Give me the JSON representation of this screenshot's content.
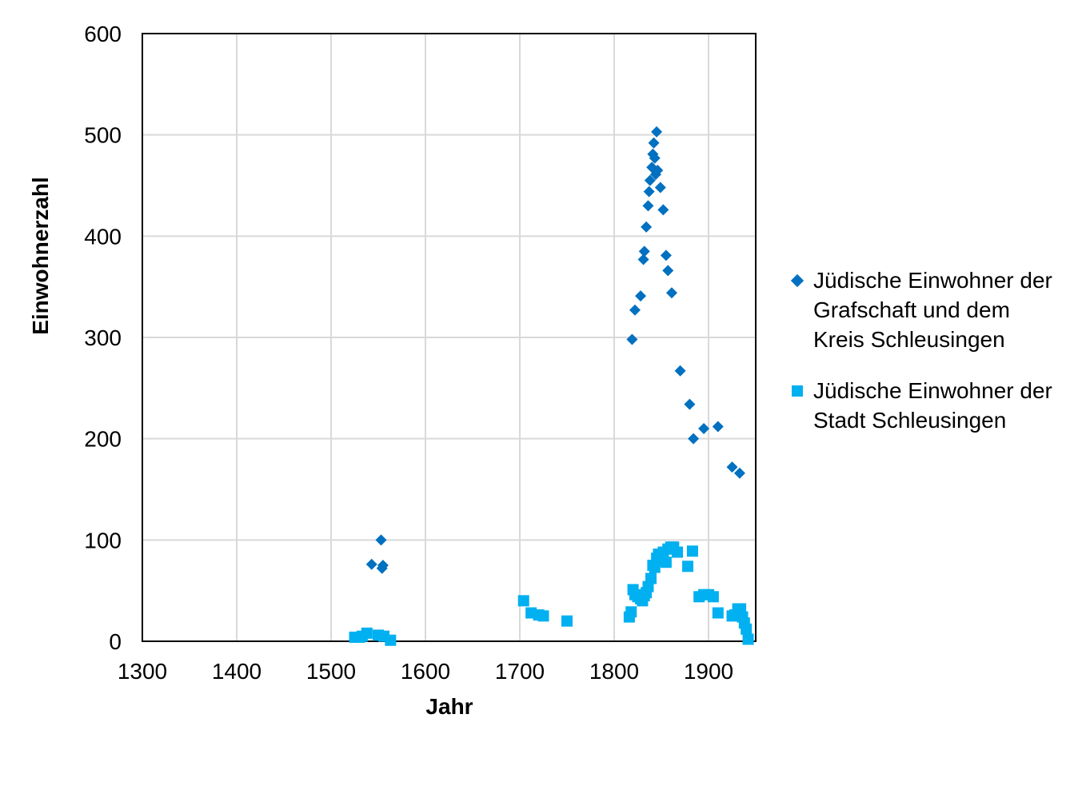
{
  "chart_data": {
    "type": "scatter",
    "xlabel": "Jahr",
    "ylabel": "Einwohnerzahl",
    "xlim": [
      1300,
      1950
    ],
    "ylim": [
      0,
      600
    ],
    "x_ticks": [
      1300,
      1400,
      1500,
      1600,
      1700,
      1800,
      1900
    ],
    "y_ticks": [
      0,
      100,
      200,
      300,
      400,
      500,
      600
    ],
    "grid": true,
    "legend_position": "right",
    "series": [
      {
        "name": "Jüdische Einwohner der Grafschaft und dem Kreis Schleusingen",
        "marker": "diamond",
        "color": "#0070C0",
        "points": [
          [
            1543,
            76
          ],
          [
            1553,
            100
          ],
          [
            1554,
            72
          ],
          [
            1555,
            75
          ],
          [
            1819,
            298
          ],
          [
            1822,
            327
          ],
          [
            1828,
            341
          ],
          [
            1831,
            377
          ],
          [
            1832,
            385
          ],
          [
            1834,
            409
          ],
          [
            1836,
            430
          ],
          [
            1837,
            444
          ],
          [
            1838,
            455
          ],
          [
            1840,
            468
          ],
          [
            1841,
            481
          ],
          [
            1842,
            492
          ],
          [
            1843,
            477
          ],
          [
            1844,
            461
          ],
          [
            1845,
            503
          ],
          [
            1846,
            465
          ],
          [
            1849,
            448
          ],
          [
            1852,
            426
          ],
          [
            1855,
            381
          ],
          [
            1857,
            366
          ],
          [
            1861,
            344
          ],
          [
            1870,
            267
          ],
          [
            1880,
            234
          ],
          [
            1884,
            200
          ],
          [
            1895,
            210
          ],
          [
            1910,
            212
          ],
          [
            1925,
            172
          ],
          [
            1933,
            166
          ]
        ]
      },
      {
        "name": "Jüdische Einwohner der Stadt Schleusingen",
        "marker": "square",
        "color": "#00B0F0",
        "points": [
          [
            1525,
            4
          ],
          [
            1530,
            4
          ],
          [
            1533,
            5
          ],
          [
            1538,
            8
          ],
          [
            1550,
            6
          ],
          [
            1556,
            5
          ],
          [
            1563,
            1
          ],
          [
            1704,
            40
          ],
          [
            1712,
            28
          ],
          [
            1720,
            26
          ],
          [
            1725,
            25
          ],
          [
            1750,
            20
          ],
          [
            1816,
            24
          ],
          [
            1818,
            29
          ],
          [
            1820,
            51
          ],
          [
            1822,
            46
          ],
          [
            1825,
            44
          ],
          [
            1828,
            42
          ],
          [
            1830,
            40
          ],
          [
            1832,
            45
          ],
          [
            1834,
            48
          ],
          [
            1836,
            54
          ],
          [
            1839,
            62
          ],
          [
            1841,
            75
          ],
          [
            1843,
            73
          ],
          [
            1845,
            82
          ],
          [
            1847,
            86
          ],
          [
            1850,
            80
          ],
          [
            1852,
            88
          ],
          [
            1855,
            78
          ],
          [
            1857,
            91
          ],
          [
            1860,
            93
          ],
          [
            1863,
            93
          ],
          [
            1867,
            88
          ],
          [
            1878,
            74
          ],
          [
            1883,
            89
          ],
          [
            1890,
            44
          ],
          [
            1895,
            46
          ],
          [
            1900,
            46
          ],
          [
            1905,
            44
          ],
          [
            1910,
            28
          ],
          [
            1925,
            25
          ],
          [
            1928,
            26
          ],
          [
            1931,
            32
          ],
          [
            1934,
            32
          ],
          [
            1936,
            24
          ],
          [
            1938,
            18
          ],
          [
            1940,
            12
          ],
          [
            1942,
            2
          ]
        ]
      }
    ]
  }
}
